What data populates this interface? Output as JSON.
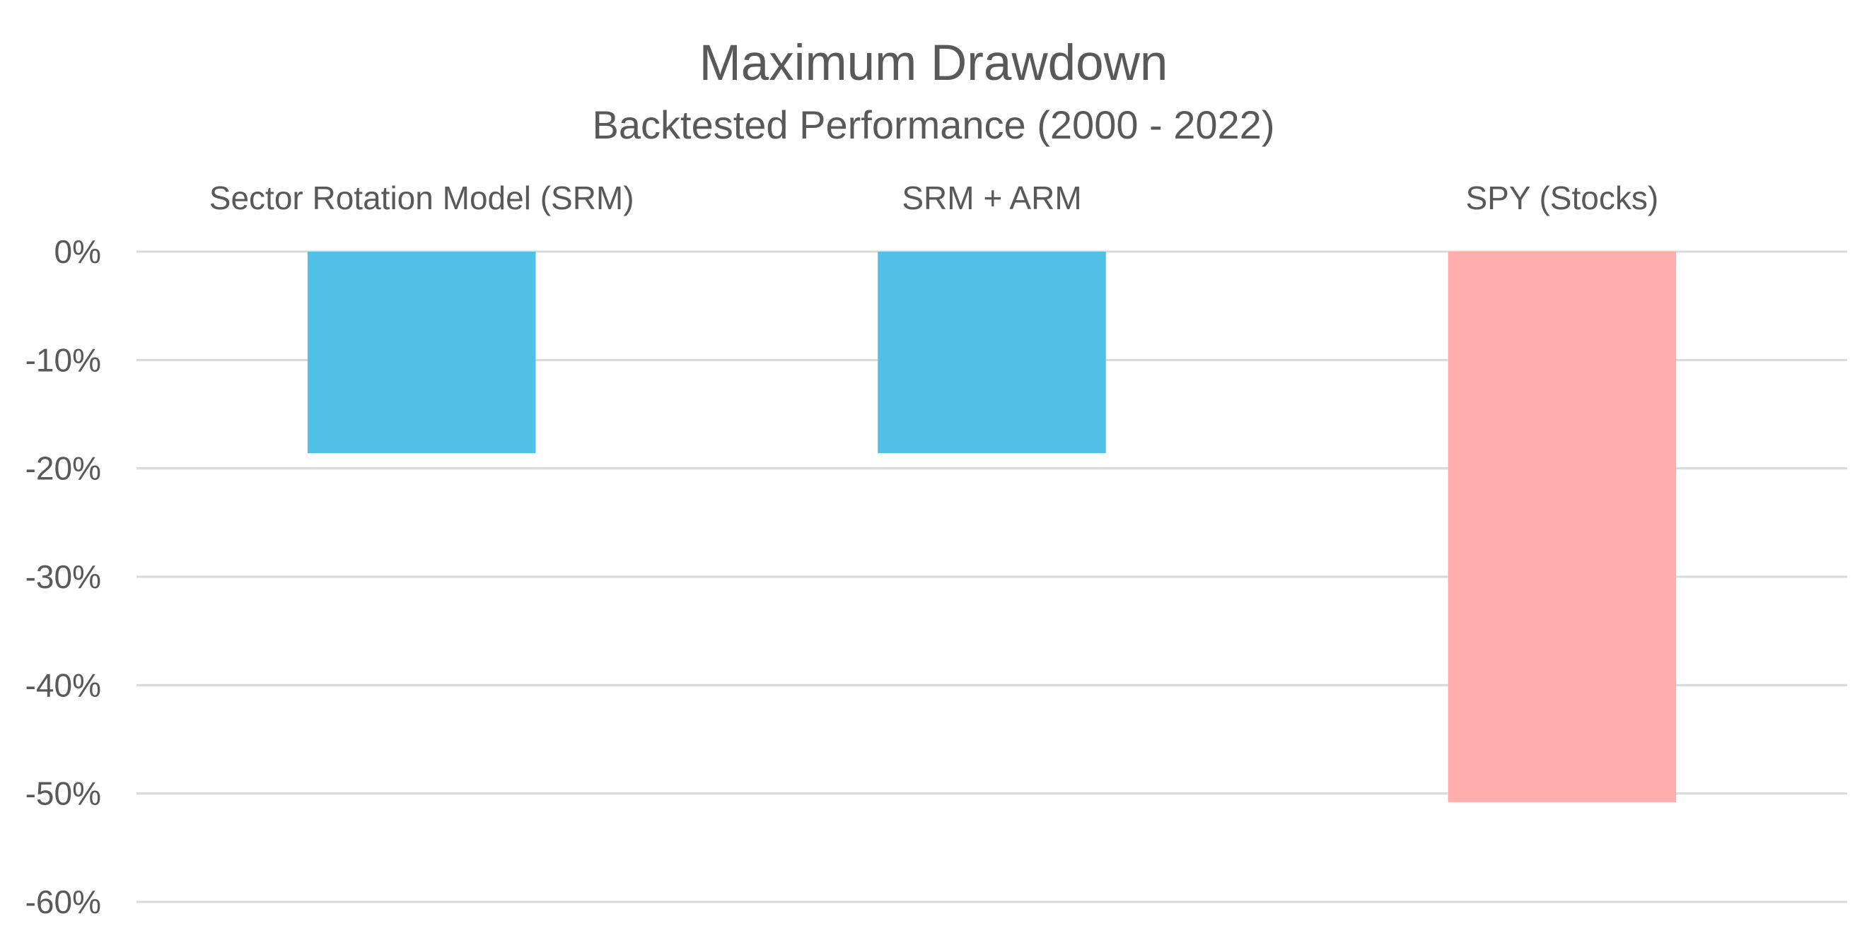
{
  "chart_data": {
    "type": "bar",
    "title": "Maximum Drawdown",
    "subtitle": "Backtested Performance (2000 - 2022)",
    "categories": [
      "Sector Rotation Model (SRM)",
      "SRM + ARM",
      "SPY (Stocks)"
    ],
    "values": [
      -18.6,
      -18.6,
      -50.8
    ],
    "bar_colors": [
      "#50c0e6",
      "#50c0e6",
      "#ffadad"
    ],
    "ylim": [
      -60,
      0
    ],
    "y_ticks": [
      0,
      -10,
      -20,
      -30,
      -40,
      -50,
      -60
    ],
    "y_tick_labels": [
      "0%",
      "-10%",
      "-20%",
      "-30%",
      "-40%",
      "-50%",
      "-60%"
    ],
    "category_labels_position": "top",
    "grid": true,
    "legend": false
  }
}
